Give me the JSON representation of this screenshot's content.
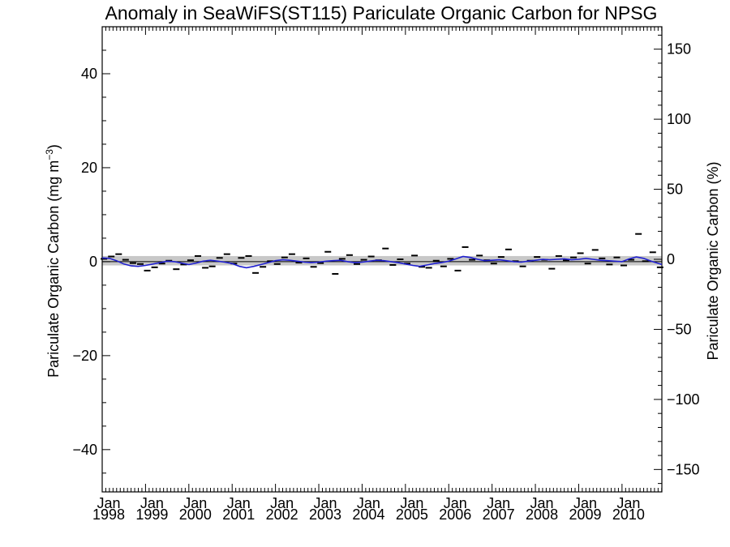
{
  "chart_data": {
    "type": "line",
    "title": "Anomaly in SeaWiFS(ST115) Pariculate Organic Carbon for NPSG",
    "ylabel": "Pariculate Organic Carbon (mg m",
    "ylabel_superscript": "−3",
    "ylabel_close": ")",
    "ylabel_right": "Pariculate Organic Carbon (%)",
    "xlim": [
      1998.0,
      2010.92
    ],
    "ylim": [
      -49,
      50
    ],
    "ylim_right": [
      -166,
      166
    ],
    "yticks": [
      {
        "value": -40,
        "label": "−40"
      },
      {
        "value": -20,
        "label": "−20"
      },
      {
        "value": 0,
        "label": "0"
      },
      {
        "value": 20,
        "label": "20"
      },
      {
        "value": 40,
        "label": "40"
      }
    ],
    "yticks_right": [
      {
        "value": -150,
        "label": "−150"
      },
      {
        "value": -100,
        "label": "−100"
      },
      {
        "value": -50,
        "label": "−50"
      },
      {
        "value": 0,
        "label": "0"
      },
      {
        "value": 50,
        "label": "50"
      },
      {
        "value": 100,
        "label": "100"
      },
      {
        "value": 150,
        "label": "150"
      }
    ],
    "xticks": [
      {
        "value": 1998,
        "month": "Jan",
        "year": "1998"
      },
      {
        "value": 1999,
        "month": "Jan",
        "year": "1999"
      },
      {
        "value": 2000,
        "month": "Jan",
        "year": "2000"
      },
      {
        "value": 2001,
        "month": "Jan",
        "year": "2001"
      },
      {
        "value": 2002,
        "month": "Jan",
        "year": "2002"
      },
      {
        "value": 2003,
        "month": "Jan",
        "year": "2003"
      },
      {
        "value": 2004,
        "month": "Jan",
        "year": "2004"
      },
      {
        "value": 2005,
        "month": "Jan",
        "year": "2005"
      },
      {
        "value": 2006,
        "month": "Jan",
        "year": "2006"
      },
      {
        "value": 2007,
        "month": "Jan",
        "year": "2007"
      },
      {
        "value": 2008,
        "month": "Jan",
        "year": "2008"
      },
      {
        "value": 2009,
        "month": "Jan",
        "year": "2009"
      },
      {
        "value": 2010,
        "month": "Jan",
        "year": "2010"
      }
    ],
    "grid": false,
    "shaded_band": {
      "y_range": [
        -0.8,
        1.2
      ],
      "color": "#c8c8c8"
    },
    "series": [
      {
        "style": "markers",
        "color": "#000000",
        "x": [
          1998.04,
          1998.21,
          1998.38,
          1998.54,
          1998.71,
          1998.88,
          1999.04,
          1999.21,
          1999.38,
          1999.54,
          1999.71,
          1999.88,
          2000.04,
          2000.21,
          2000.38,
          2000.54,
          2000.71,
          2000.88,
          2001.04,
          2001.21,
          2001.38,
          2001.54,
          2001.71,
          2001.88,
          2002.04,
          2002.21,
          2002.38,
          2002.54,
          2002.71,
          2002.88,
          2003.04,
          2003.21,
          2003.38,
          2003.54,
          2003.71,
          2003.88,
          2004.04,
          2004.21,
          2004.38,
          2004.54,
          2004.71,
          2004.88,
          2005.04,
          2005.21,
          2005.38,
          2005.54,
          2005.71,
          2005.88,
          2006.04,
          2006.21,
          2006.38,
          2006.54,
          2006.71,
          2006.88,
          2007.04,
          2007.21,
          2007.38,
          2007.54,
          2007.71,
          2007.88,
          2008.04,
          2008.21,
          2008.38,
          2008.54,
          2008.71,
          2008.88,
          2009.04,
          2009.21,
          2009.38,
          2009.54,
          2009.71,
          2009.88,
          2010.04,
          2010.21,
          2010.38,
          2010.54,
          2010.71,
          2010.88
        ],
        "values": [
          0.6,
          1.1,
          1.6,
          0.4,
          -0.3,
          -0.5,
          -1.9,
          -1.2,
          -0.4,
          0.2,
          -1.6,
          -0.6,
          0.3,
          1.2,
          -1.3,
          -1.0,
          0.8,
          1.6,
          -0.4,
          0.8,
          1.2,
          -2.4,
          -1.1,
          0.1,
          -0.5,
          0.9,
          1.6,
          -0.2,
          0.7,
          -1.1,
          -0.3,
          2.1,
          -2.6,
          0.6,
          1.4,
          -0.5,
          0.4,
          1.1,
          0.3,
          2.8,
          -0.7,
          0.5,
          -0.4,
          1.3,
          -1.1,
          -1.3,
          0.2,
          -1.0,
          0.6,
          -1.9,
          3.1,
          0.4,
          1.3,
          0.3,
          -0.4,
          1.0,
          2.6,
          0.1,
          -1.0,
          0.2,
          1.0,
          0.4,
          -1.5,
          1.2,
          0.3,
          0.9,
          1.8,
          -0.4,
          2.5,
          0.7,
          -0.6,
          0.9,
          -0.8,
          0.4,
          5.9,
          0.1,
          2.0,
          -1.2
        ]
      },
      {
        "style": "line",
        "color": "#1f1fd0",
        "x": [
          1998.0,
          1998.17,
          1998.33,
          1998.5,
          1998.67,
          1998.83,
          1999.0,
          1999.17,
          1999.33,
          1999.5,
          1999.67,
          1999.83,
          2000.0,
          2000.17,
          2000.33,
          2000.5,
          2000.67,
          2000.83,
          2001.0,
          2001.17,
          2001.33,
          2001.5,
          2001.67,
          2001.83,
          2002.0,
          2002.17,
          2002.33,
          2002.5,
          2002.67,
          2002.83,
          2003.0,
          2003.17,
          2003.33,
          2003.5,
          2003.67,
          2003.83,
          2004.0,
          2004.17,
          2004.33,
          2004.5,
          2004.67,
          2004.83,
          2005.0,
          2005.17,
          2005.33,
          2005.5,
          2005.67,
          2005.83,
          2006.0,
          2006.17,
          2006.33,
          2006.5,
          2006.67,
          2006.83,
          2007.0,
          2007.17,
          2007.33,
          2007.5,
          2007.67,
          2007.83,
          2008.0,
          2008.17,
          2008.33,
          2008.5,
          2008.67,
          2008.83,
          2009.0,
          2009.17,
          2009.33,
          2009.5,
          2009.67,
          2009.83,
          2010.0,
          2010.17,
          2010.33,
          2010.5,
          2010.67,
          2010.92
        ],
        "values": [
          0.8,
          0.7,
          0.2,
          -0.5,
          -0.9,
          -1.0,
          -0.8,
          -0.5,
          -0.2,
          0.1,
          0.0,
          -0.3,
          -0.6,
          -0.3,
          0.1,
          0.3,
          0.1,
          -0.1,
          -0.4,
          -1.0,
          -1.3,
          -1.0,
          -0.6,
          -0.2,
          0.2,
          0.4,
          0.3,
          0.1,
          -0.1,
          -0.2,
          -0.1,
          0.1,
          0.2,
          0.3,
          0.0,
          -0.2,
          -0.1,
          0.1,
          0.3,
          0.2,
          0.0,
          -0.2,
          -0.5,
          -0.8,
          -1.0,
          -0.7,
          -0.4,
          -0.2,
          0.1,
          0.6,
          1.1,
          0.9,
          0.5,
          0.2,
          0.3,
          0.4,
          0.2,
          0.0,
          -0.1,
          0.1,
          0.3,
          0.5,
          0.4,
          0.5,
          0.6,
          0.4,
          0.5,
          0.7,
          0.5,
          0.3,
          0.2,
          0.1,
          0.0,
          0.6,
          1.0,
          0.7,
          0.1,
          -0.6
        ]
      }
    ]
  }
}
